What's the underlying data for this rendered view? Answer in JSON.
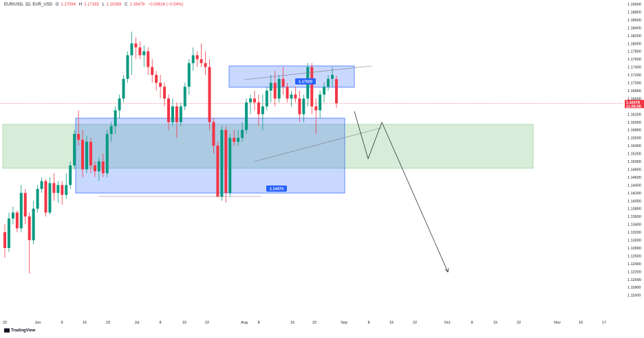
{
  "header": {
    "symbol": "EUR/USD, 1D, EUR_USD",
    "open_label": "O",
    "open": "1.17094",
    "high_label": "H",
    "high": "1.17183",
    "low_label": "L",
    "low": "1.16358",
    "close_label": "C",
    "close": "1.16478",
    "change": "−0.00616 (−0.54%)"
  },
  "brand": "TradingView",
  "price_tag": {
    "value": "1.16478",
    "timer": "11:58:56"
  },
  "colors": {
    "up": "#089981",
    "down": "#f23645",
    "blue_box": "#2962ff",
    "green_box": "#4caf50",
    "label_bg": "#2962ff"
  },
  "chart_data": {
    "type": "candlestick",
    "ylim": [
      1.11,
      1.19
    ],
    "yticks": [
      "1.19000",
      "1.18800",
      "1.18600",
      "1.18400",
      "1.18200",
      "1.18000",
      "1.17800",
      "1.17600",
      "1.17400",
      "1.17200",
      "1.17000",
      "1.16800",
      "1.16600",
      "1.16400",
      "1.16200",
      "1.16000",
      "1.15800",
      "1.15600",
      "1.15400",
      "1.15200",
      "1.15000",
      "1.14800",
      "1.14600",
      "1.14400",
      "1.14200",
      "1.14000",
      "1.13800",
      "1.13600",
      "1.13400",
      "1.13200",
      "1.13000",
      "1.12800",
      "1.12600",
      "1.12400",
      "1.12200",
      "1.12000",
      "1.11800",
      "1.11600"
    ],
    "xticks": [
      "22",
      "Jun",
      "9",
      "16",
      "23",
      "Jul",
      "8",
      "15",
      "22",
      "Aug",
      "8",
      "15",
      "22",
      "Sep",
      "8",
      "15",
      "22",
      "Oct",
      "8",
      "15",
      "22",
      "Nov",
      "10",
      "17"
    ],
    "candles": [
      {
        "o": 1.132,
        "h": 1.134,
        "l": 1.1255,
        "c": 1.128
      },
      {
        "o": 1.128,
        "h": 1.137,
        "l": 1.127,
        "c": 1.1355
      },
      {
        "o": 1.1355,
        "h": 1.1385,
        "l": 1.134,
        "c": 1.137
      },
      {
        "o": 1.137,
        "h": 1.1375,
        "l": 1.132,
        "c": 1.133
      },
      {
        "o": 1.133,
        "h": 1.144,
        "l": 1.132,
        "c": 1.142
      },
      {
        "o": 1.142,
        "h": 1.143,
        "l": 1.134,
        "c": 1.136
      },
      {
        "o": 1.136,
        "h": 1.137,
        "l": 1.1215,
        "c": 1.13
      },
      {
        "o": 1.13,
        "h": 1.14,
        "l": 1.129,
        "c": 1.138
      },
      {
        "o": 1.138,
        "h": 1.144,
        "l": 1.137,
        "c": 1.143
      },
      {
        "o": 1.143,
        "h": 1.146,
        "l": 1.142,
        "c": 1.145
      },
      {
        "o": 1.145,
        "h": 1.1455,
        "l": 1.136,
        "c": 1.137
      },
      {
        "o": 1.137,
        "h": 1.146,
        "l": 1.1365,
        "c": 1.1445
      },
      {
        "o": 1.1445,
        "h": 1.147,
        "l": 1.14,
        "c": 1.142
      },
      {
        "o": 1.142,
        "h": 1.145,
        "l": 1.1395,
        "c": 1.144
      },
      {
        "o": 1.144,
        "h": 1.145,
        "l": 1.139,
        "c": 1.1415
      },
      {
        "o": 1.1415,
        "h": 1.147,
        "l": 1.1405,
        "c": 1.144
      },
      {
        "o": 1.144,
        "h": 1.15,
        "l": 1.143,
        "c": 1.149
      },
      {
        "o": 1.149,
        "h": 1.158,
        "l": 1.148,
        "c": 1.157
      },
      {
        "o": 1.157,
        "h": 1.163,
        "l": 1.154,
        "c": 1.1555
      },
      {
        "o": 1.1555,
        "h": 1.158,
        "l": 1.146,
        "c": 1.148
      },
      {
        "o": 1.148,
        "h": 1.1565,
        "l": 1.147,
        "c": 1.155
      },
      {
        "o": 1.155,
        "h": 1.156,
        "l": 1.147,
        "c": 1.149
      },
      {
        "o": 1.149,
        "h": 1.15,
        "l": 1.146,
        "c": 1.1475
      },
      {
        "o": 1.1475,
        "h": 1.151,
        "l": 1.145,
        "c": 1.15
      },
      {
        "o": 1.15,
        "h": 1.152,
        "l": 1.146,
        "c": 1.147
      },
      {
        "o": 1.147,
        "h": 1.158,
        "l": 1.146,
        "c": 1.157
      },
      {
        "o": 1.157,
        "h": 1.16,
        "l": 1.155,
        "c": 1.159
      },
      {
        "o": 1.159,
        "h": 1.164,
        "l": 1.157,
        "c": 1.163
      },
      {
        "o": 1.163,
        "h": 1.167,
        "l": 1.161,
        "c": 1.166
      },
      {
        "o": 1.166,
        "h": 1.172,
        "l": 1.165,
        "c": 1.171
      },
      {
        "o": 1.171,
        "h": 1.178,
        "l": 1.17,
        "c": 1.177
      },
      {
        "o": 1.177,
        "h": 1.183,
        "l": 1.172,
        "c": 1.18
      },
      {
        "o": 1.18,
        "h": 1.1815,
        "l": 1.176,
        "c": 1.179
      },
      {
        "o": 1.179,
        "h": 1.1805,
        "l": 1.176,
        "c": 1.177
      },
      {
        "o": 1.177,
        "h": 1.1795,
        "l": 1.174,
        "c": 1.178
      },
      {
        "o": 1.178,
        "h": 1.179,
        "l": 1.172,
        "c": 1.174
      },
      {
        "o": 1.174,
        "h": 1.176,
        "l": 1.17,
        "c": 1.172
      },
      {
        "o": 1.172,
        "h": 1.173,
        "l": 1.168,
        "c": 1.17
      },
      {
        "o": 1.17,
        "h": 1.172,
        "l": 1.166,
        "c": 1.169
      },
      {
        "o": 1.169,
        "h": 1.17,
        "l": 1.164,
        "c": 1.166
      },
      {
        "o": 1.166,
        "h": 1.167,
        "l": 1.158,
        "c": 1.16
      },
      {
        "o": 1.16,
        "h": 1.166,
        "l": 1.159,
        "c": 1.164
      },
      {
        "o": 1.164,
        "h": 1.165,
        "l": 1.156,
        "c": 1.16
      },
      {
        "o": 1.16,
        "h": 1.165,
        "l": 1.159,
        "c": 1.164
      },
      {
        "o": 1.164,
        "h": 1.17,
        "l": 1.163,
        "c": 1.169
      },
      {
        "o": 1.169,
        "h": 1.176,
        "l": 1.167,
        "c": 1.175
      },
      {
        "o": 1.175,
        "h": 1.179,
        "l": 1.173,
        "c": 1.177
      },
      {
        "o": 1.177,
        "h": 1.178,
        "l": 1.174,
        "c": 1.176
      },
      {
        "o": 1.176,
        "h": 1.18,
        "l": 1.174,
        "c": 1.175
      },
      {
        "o": 1.175,
        "h": 1.178,
        "l": 1.172,
        "c": 1.174
      },
      {
        "o": 1.174,
        "h": 1.176,
        "l": 1.158,
        "c": 1.16
      },
      {
        "o": 1.16,
        "h": 1.161,
        "l": 1.152,
        "c": 1.154
      },
      {
        "o": 1.154,
        "h": 1.155,
        "l": 1.141,
        "c": 1.141
      },
      {
        "o": 1.141,
        "h": 1.159,
        "l": 1.14,
        "c": 1.158
      },
      {
        "o": 1.158,
        "h": 1.159,
        "l": 1.1395,
        "c": 1.142
      },
      {
        "o": 1.142,
        "h": 1.157,
        "l": 1.141,
        "c": 1.156
      },
      {
        "o": 1.156,
        "h": 1.158,
        "l": 1.154,
        "c": 1.155
      },
      {
        "o": 1.155,
        "h": 1.158,
        "l": 1.154,
        "c": 1.156
      },
      {
        "o": 1.156,
        "h": 1.16,
        "l": 1.155,
        "c": 1.158
      },
      {
        "o": 1.158,
        "h": 1.166,
        "l": 1.157,
        "c": 1.165
      },
      {
        "o": 1.165,
        "h": 1.167,
        "l": 1.162,
        "c": 1.166
      },
      {
        "o": 1.166,
        "h": 1.168,
        "l": 1.163,
        "c": 1.165
      },
      {
        "o": 1.165,
        "h": 1.167,
        "l": 1.159,
        "c": 1.162
      },
      {
        "o": 1.162,
        "h": 1.167,
        "l": 1.158,
        "c": 1.164
      },
      {
        "o": 1.164,
        "h": 1.169,
        "l": 1.163,
        "c": 1.168
      },
      {
        "o": 1.168,
        "h": 1.172,
        "l": 1.165,
        "c": 1.17
      },
      {
        "o": 1.17,
        "h": 1.173,
        "l": 1.164,
        "c": 1.166
      },
      {
        "o": 1.166,
        "h": 1.172,
        "l": 1.165,
        "c": 1.171
      },
      {
        "o": 1.171,
        "h": 1.174,
        "l": 1.167,
        "c": 1.169
      },
      {
        "o": 1.169,
        "h": 1.17,
        "l": 1.165,
        "c": 1.166
      },
      {
        "o": 1.166,
        "h": 1.168,
        "l": 1.164,
        "c": 1.167
      },
      {
        "o": 1.167,
        "h": 1.169,
        "l": 1.165,
        "c": 1.166
      },
      {
        "o": 1.166,
        "h": 1.168,
        "l": 1.16,
        "c": 1.162
      },
      {
        "o": 1.162,
        "h": 1.167,
        "l": 1.16,
        "c": 1.166
      },
      {
        "o": 1.166,
        "h": 1.175,
        "l": 1.164,
        "c": 1.174
      },
      {
        "o": 1.174,
        "h": 1.175,
        "l": 1.162,
        "c": 1.164
      },
      {
        "o": 1.164,
        "h": 1.166,
        "l": 1.157,
        "c": 1.163
      },
      {
        "o": 1.163,
        "h": 1.168,
        "l": 1.161,
        "c": 1.167
      },
      {
        "o": 1.167,
        "h": 1.17,
        "l": 1.165,
        "c": 1.169
      },
      {
        "o": 1.169,
        "h": 1.172,
        "l": 1.168,
        "c": 1.171
      },
      {
        "o": 1.171,
        "h": 1.174,
        "l": 1.169,
        "c": 1.172
      },
      {
        "o": 1.17094,
        "h": 1.17183,
        "l": 1.16358,
        "c": 1.16478
      }
    ],
    "annotations": {
      "upper_range_label": "1.17020",
      "lower_range_label": "1.14474"
    }
  }
}
